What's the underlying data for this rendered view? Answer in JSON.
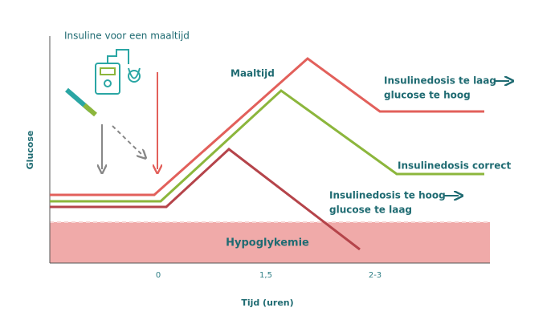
{
  "annotation": "Insuline voor een maaltijd",
  "meal_label": "Maaltijd",
  "y_axis_label": "Glucose",
  "x_axis_label": "Tijd (uren)",
  "x_labels": [
    "0",
    "1,5",
    "2-3"
  ],
  "zone_label": "Hypoglykemie",
  "curves": [
    {
      "lines": [
        "Insulinedosis te laag",
        "glucose te hoog"
      ]
    },
    {
      "lines": [
        "Insulinedosis correct"
      ]
    },
    {
      "lines": [
        "Insulinedosis te hoog",
        "glucose te laag"
      ]
    }
  ]
}
